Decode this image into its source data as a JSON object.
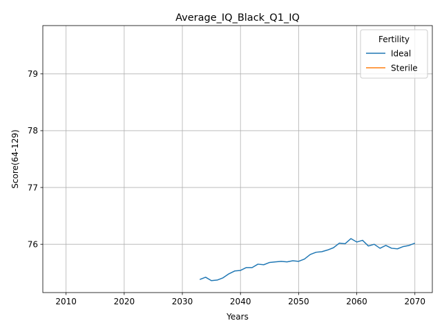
{
  "chart_data": {
    "type": "line",
    "title": "Average_IQ_Black_Q1_IQ",
    "xlabel": "Years",
    "ylabel": "Score(64-129)",
    "xlim": [
      2006,
      2073
    ],
    "ylim": [
      75.15,
      79.85
    ],
    "xticks": [
      2010,
      2020,
      2030,
      2040,
      2050,
      2060,
      2070
    ],
    "yticks": [
      76,
      77,
      78,
      79
    ],
    "grid": true,
    "legend": {
      "title": "Fertility",
      "placement": "top-right"
    },
    "series": [
      {
        "name": "Ideal",
        "color": "#1f77b4",
        "x": [
          2033,
          2034,
          2035,
          2036,
          2037,
          2038,
          2039,
          2040,
          2041,
          2042,
          2043,
          2044,
          2045,
          2046,
          2047,
          2048,
          2049,
          2050,
          2051,
          2052,
          2053,
          2054,
          2055,
          2056,
          2057,
          2058,
          2059,
          2060,
          2061,
          2062,
          2063,
          2064,
          2065,
          2066,
          2067,
          2068,
          2069,
          2070
        ],
        "y": [
          75.38,
          75.42,
          75.36,
          75.37,
          75.41,
          75.48,
          75.53,
          75.54,
          75.59,
          75.59,
          75.65,
          75.64,
          75.68,
          75.69,
          75.7,
          75.69,
          75.71,
          75.7,
          75.74,
          75.82,
          75.86,
          75.87,
          75.9,
          75.94,
          76.02,
          76.01,
          76.1,
          76.04,
          76.07,
          75.97,
          76.0,
          75.93,
          75.98,
          75.93,
          75.92,
          75.96,
          75.98,
          76.02
        ]
      },
      {
        "name": "Sterile",
        "color": "#ff7f0e",
        "x": [],
        "y": []
      }
    ]
  }
}
